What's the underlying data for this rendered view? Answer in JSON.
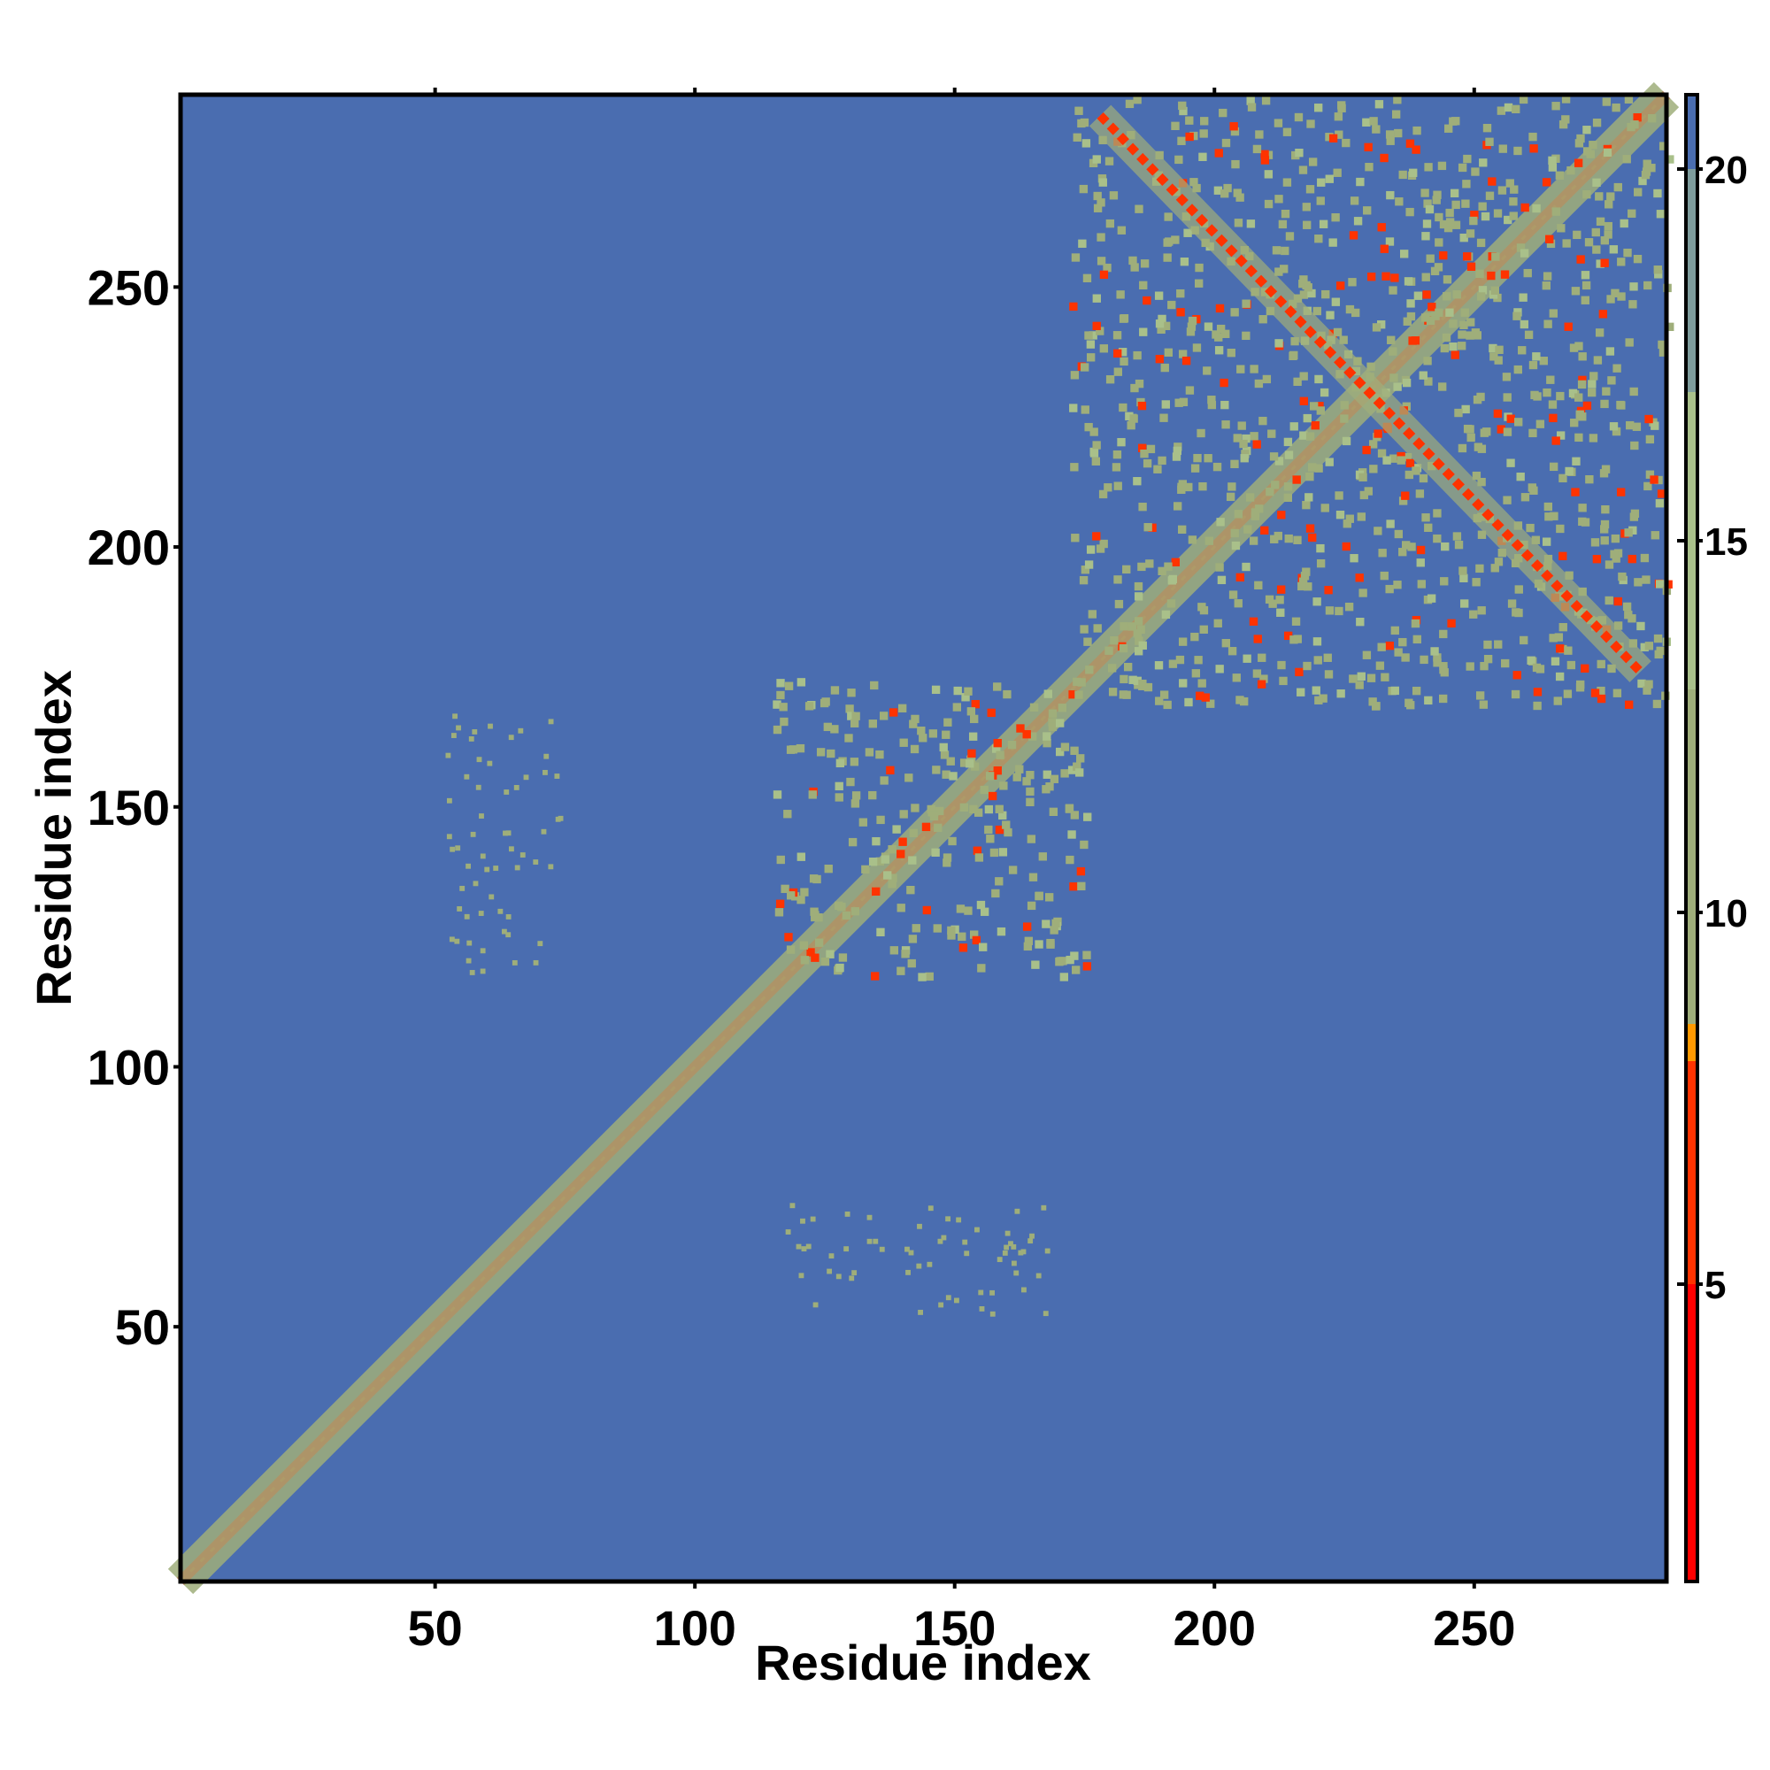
{
  "chart_data": {
    "type": "heatmap",
    "title": "",
    "xlabel": "Residue index",
    "ylabel": "Residue index",
    "xlim": [
      1,
      287
    ],
    "ylim": [
      1,
      287
    ],
    "x_ticks": [
      50,
      100,
      150,
      200,
      250
    ],
    "y_ticks": [
      50,
      100,
      150,
      200,
      250
    ],
    "x_tick_labels": [
      "50",
      "100",
      "150",
      "200",
      "250"
    ],
    "y_tick_labels": [
      "50",
      "100",
      "150",
      "200",
      "250"
    ],
    "grid": false,
    "legend": "none",
    "colorbar": {
      "placement": "right",
      "range": [
        1,
        21
      ],
      "ticks": [
        5,
        10,
        15,
        20
      ],
      "tick_labels": [
        "5",
        "10",
        "15",
        "20"
      ],
      "colors": [
        {
          "value": 1,
          "color": "#ff0000"
        },
        {
          "value": 5,
          "color": "#ff3300"
        },
        {
          "value": 8,
          "color": "#ff9900"
        },
        {
          "value": 8.5,
          "color": "#9fae7a"
        },
        {
          "value": 13,
          "color": "#a9c08a"
        },
        {
          "value": 17,
          "color": "#7e9c9c"
        },
        {
          "value": 20,
          "color": "#4a6db0"
        },
        {
          "value": 21,
          "color": "#0000ff"
        }
      ]
    },
    "background_value": 21,
    "features": [
      {
        "kind": "diagonal",
        "from": 1,
        "to": 287,
        "value": 1
      },
      {
        "kind": "near-diagonal band",
        "from": 1,
        "to": 287,
        "value": 11
      },
      {
        "kind": "contact block",
        "x": [
          115,
          175
        ],
        "y": [
          118,
          175
        ],
        "value": 12
      },
      {
        "kind": "contact block",
        "x": [
          172,
          287
        ],
        "y": [
          170,
          287
        ],
        "value": 12
      },
      {
        "kind": "anti-diagonal strand",
        "x": [
          178,
          282
        ],
        "y": [
          283,
          176
        ],
        "value": 6
      },
      {
        "kind": "sparse contacts",
        "x": [
          52,
          75
        ],
        "y": [
          118,
          168
        ],
        "value": 13
      },
      {
        "kind": "sparse contacts",
        "x": [
          117,
          168
        ],
        "y": [
          52,
          74
        ],
        "value": 13
      }
    ]
  }
}
